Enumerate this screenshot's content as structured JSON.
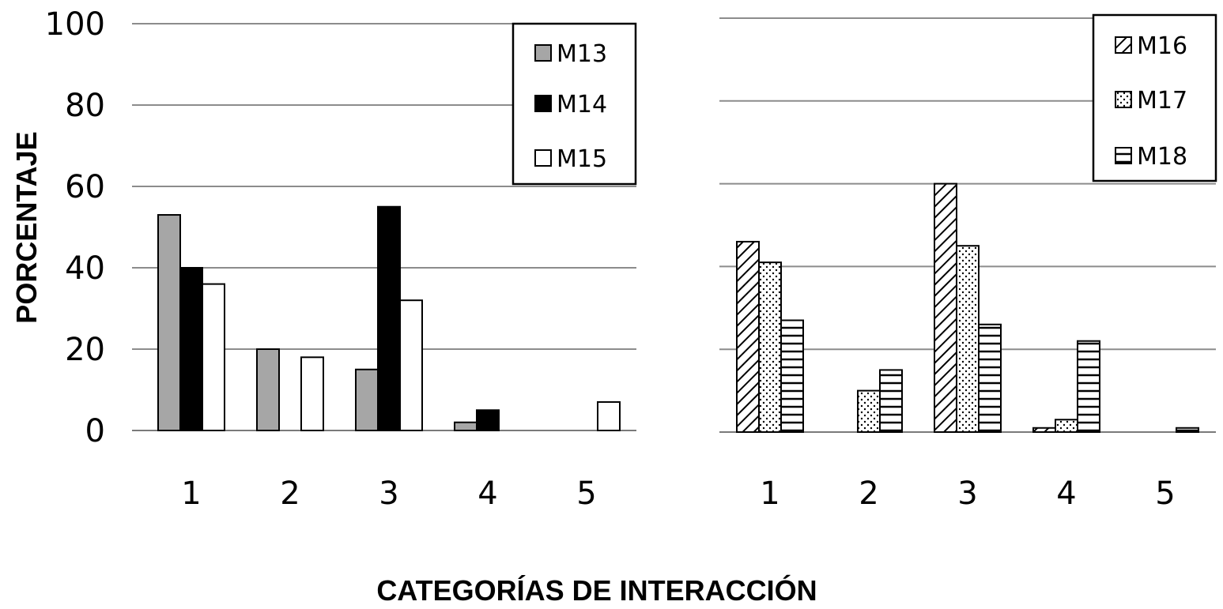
{
  "shared": {
    "ylabel": "PORCENTAJE",
    "xlabel": "CATEGORÍAS DE INTERACCIÓN"
  },
  "chart_data": [
    {
      "type": "bar",
      "categories": [
        "1",
        "2",
        "3",
        "4",
        "5"
      ],
      "ylim": [
        0,
        100
      ],
      "yticks": [
        "0",
        "20",
        "40",
        "60",
        "80",
        "100"
      ],
      "grid": true,
      "legend_position": "top-right",
      "series": [
        {
          "name": "M13",
          "fill": "#a6a6a6",
          "pattern": "solid",
          "values": [
            53,
            20,
            15,
            2,
            0
          ]
        },
        {
          "name": "M14",
          "fill": "#000000",
          "pattern": "solid",
          "values": [
            40,
            0,
            55,
            5,
            0
          ]
        },
        {
          "name": "M15",
          "fill": "#ffffff",
          "pattern": "solid",
          "values": [
            36,
            18,
            32,
            0,
            7
          ]
        }
      ]
    },
    {
      "type": "bar",
      "categories": [
        "1",
        "2",
        "3",
        "4",
        "5"
      ],
      "ylim": [
        0,
        100
      ],
      "yticks": [],
      "grid": true,
      "legend_position": "top-right",
      "series": [
        {
          "name": "M16",
          "fill": "#ffffff",
          "pattern": "diagonal",
          "values": [
            46,
            0,
            60,
            1,
            0
          ]
        },
        {
          "name": "M17",
          "fill": "#ffffff",
          "pattern": "dots",
          "values": [
            41,
            10,
            45,
            3,
            0
          ]
        },
        {
          "name": "M18",
          "fill": "#ffffff",
          "pattern": "horizontal",
          "values": [
            27,
            15,
            26,
            22,
            1
          ]
        }
      ]
    }
  ]
}
